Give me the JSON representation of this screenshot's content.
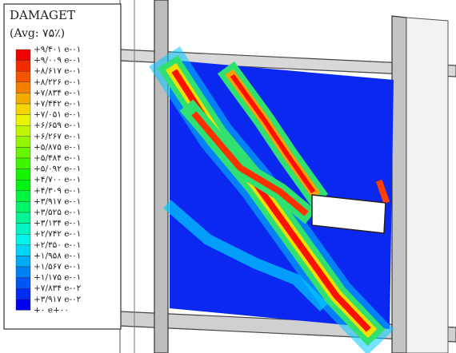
{
  "legend": {
    "title": "DAMAGET",
    "subtitle": "(Avg: ۷۵٪)",
    "labels": [
      "+۹/۴۰۱ e-۰۱",
      "+۹/۰۰۹ e-۰۱",
      "+۸/۶۱۷ e-۰۱",
      "+۸/۲۲۶ e-۰۱",
      "+۷/۸۳۴ e-۰۱",
      "+۷/۴۴۲ e-۰۱",
      "+۷/۰۵۱ e-۰۱",
      "+۶/۶۵۹ e-۰۱",
      "+۶/۲۶۷ e-۰۱",
      "+۵/۸۷۵ e-۰۱",
      "+۵/۴۸۴ e-۰۱",
      "+۵/۰۹۲ e-۰۱",
      "+۴/۷۰۰ e-۰۱",
      "+۴/۳۰۹ e-۰۱",
      "+۳/۹۱۷ e-۰۱",
      "+۳/۵۲۵ e-۰۱",
      "+۳/۱۳۴ e-۰۱",
      "+۲/۷۴۲ e-۰۱",
      "+۲/۳۵۰ e-۰۱",
      "+۱/۹۵۸ e-۰۱",
      "+۱/۵۶۷ e-۰۱",
      "+۱/۱۷۵ e-۰۱",
      "+۷/۸۳۴ e-۰۲",
      "+۳/۹۱۷ e-۰۲",
      "+۰ e+۰۰"
    ]
  }
}
